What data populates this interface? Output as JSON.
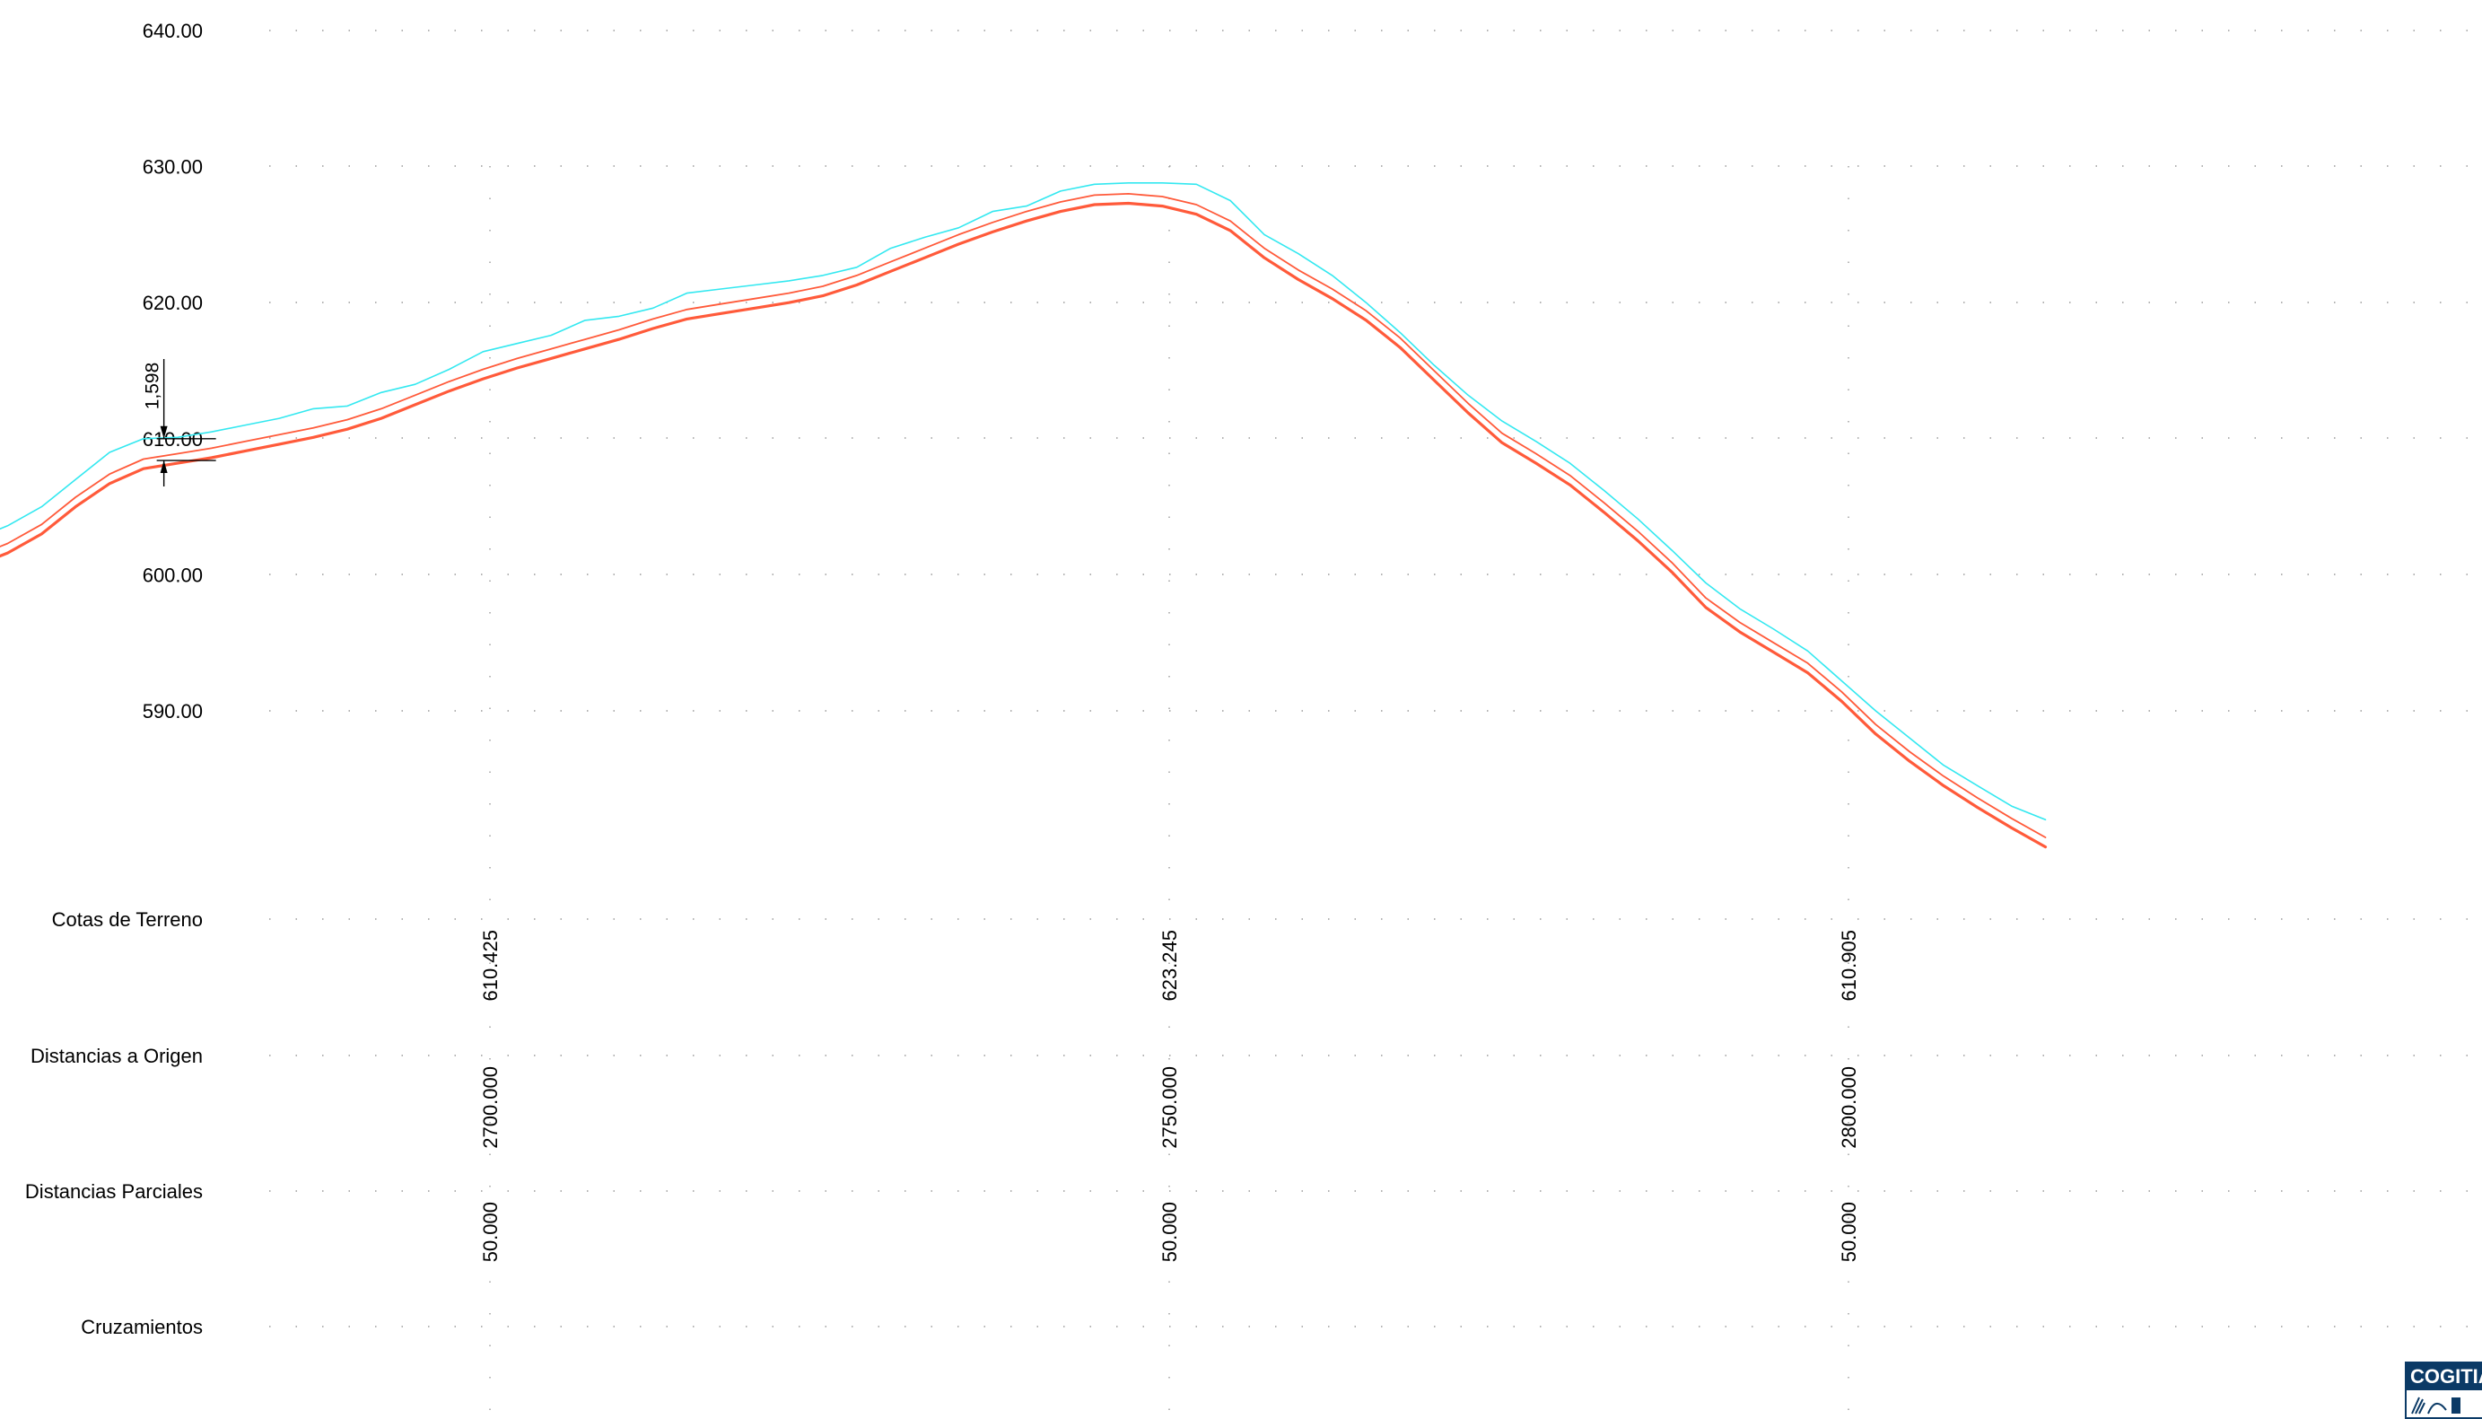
{
  "chart_data": {
    "type": "line",
    "ylim": [
      575,
      640
    ],
    "xlim": [
      2664,
      2830
    ],
    "y_ticks": [
      "640.00",
      "630.00",
      "620.00",
      "610.00",
      "600.00",
      "590.00"
    ],
    "y_tick_values": [
      640,
      630,
      620,
      610,
      600,
      590
    ],
    "row_labels": [
      "Cotas de Terreno",
      "Distancias a Origen",
      "Distancias Parciales",
      "Cruzamientos"
    ],
    "stations": [
      {
        "x": 2700,
        "cota": "610.425",
        "origen": "2700.000",
        "parcial": "50.000"
      },
      {
        "x": 2750,
        "cota": "623.245",
        "origen": "2750.000",
        "parcial": "50.000"
      },
      {
        "x": 2800,
        "cota": "610.905",
        "origen": "2800.000",
        "parcial": "50.000"
      }
    ],
    "dimension": {
      "label": "1,598",
      "x": 2676,
      "y_top": 610.0,
      "y_bottom": 608.4
    },
    "series": [
      {
        "color": "#33e8f0",
        "width": 1.6,
        "points": [
          [
            2662,
            602.6
          ],
          [
            2664.5,
            603.6
          ],
          [
            2667,
            605.0
          ],
          [
            2669.5,
            607.0
          ],
          [
            2672,
            609.0
          ],
          [
            2674.5,
            610.0
          ],
          [
            2677,
            610.1
          ],
          [
            2679.5,
            610.5
          ],
          [
            2682,
            611.0
          ],
          [
            2684.5,
            611.5
          ],
          [
            2687,
            612.2
          ],
          [
            2689.5,
            612.4
          ],
          [
            2692,
            613.4
          ],
          [
            2694.5,
            614.0
          ],
          [
            2697,
            615.1
          ],
          [
            2699.5,
            616.4
          ],
          [
            2702,
            617.0
          ],
          [
            2704.5,
            617.6
          ],
          [
            2707,
            618.7
          ],
          [
            2709.5,
            619.0
          ],
          [
            2712,
            619.6
          ],
          [
            2714.5,
            620.7
          ],
          [
            2717,
            621.0
          ],
          [
            2719.5,
            621.3
          ],
          [
            2722,
            621.6
          ],
          [
            2724.5,
            622.0
          ],
          [
            2727,
            622.6
          ],
          [
            2729.5,
            624.0
          ],
          [
            2732,
            624.8
          ],
          [
            2734.5,
            625.5
          ],
          [
            2737,
            626.7
          ],
          [
            2739.5,
            627.1
          ],
          [
            2742,
            628.2
          ],
          [
            2744.5,
            628.7
          ],
          [
            2747,
            628.8
          ],
          [
            2749.5,
            628.8
          ],
          [
            2752,
            628.7
          ],
          [
            2754.5,
            627.5
          ],
          [
            2757,
            625.0
          ],
          [
            2759.5,
            623.6
          ],
          [
            2762,
            622.0
          ],
          [
            2764.5,
            620.0
          ],
          [
            2767,
            617.8
          ],
          [
            2769.5,
            615.4
          ],
          [
            2772,
            613.2
          ],
          [
            2774.5,
            611.3
          ],
          [
            2777,
            609.8
          ],
          [
            2779.5,
            608.2
          ],
          [
            2782,
            606.2
          ],
          [
            2784.5,
            604.1
          ],
          [
            2787,
            601.8
          ],
          [
            2789.5,
            599.4
          ],
          [
            2792,
            597.5
          ],
          [
            2794.5,
            596.0
          ],
          [
            2797,
            594.4
          ],
          [
            2799.5,
            592.2
          ],
          [
            2802,
            590.0
          ],
          [
            2804.5,
            588.0
          ],
          [
            2807,
            586.0
          ],
          [
            2809.5,
            584.5
          ],
          [
            2812,
            583.0
          ],
          [
            2814.5,
            582.0
          ]
        ]
      },
      {
        "color": "#ff5a3a",
        "width": 1.8,
        "points": [
          [
            2662,
            601.3
          ],
          [
            2664.5,
            602.3
          ],
          [
            2667,
            603.7
          ],
          [
            2669.5,
            605.7
          ],
          [
            2672,
            607.4
          ],
          [
            2674.5,
            608.5
          ],
          [
            2677,
            608.9
          ],
          [
            2679.5,
            609.3
          ],
          [
            2682,
            609.8
          ],
          [
            2684.5,
            610.3
          ],
          [
            2687,
            610.8
          ],
          [
            2689.5,
            611.4
          ],
          [
            2692,
            612.2
          ],
          [
            2694.5,
            613.2
          ],
          [
            2697,
            614.2
          ],
          [
            2699.5,
            615.1
          ],
          [
            2702,
            615.9
          ],
          [
            2704.5,
            616.6
          ],
          [
            2707,
            617.3
          ],
          [
            2709.5,
            618.0
          ],
          [
            2712,
            618.8
          ],
          [
            2714.5,
            619.5
          ],
          [
            2717,
            619.9
          ],
          [
            2719.5,
            620.3
          ],
          [
            2722,
            620.7
          ],
          [
            2724.5,
            621.2
          ],
          [
            2727,
            622.0
          ],
          [
            2729.5,
            623.0
          ],
          [
            2732,
            624.0
          ],
          [
            2734.5,
            625.0
          ],
          [
            2737,
            625.9
          ],
          [
            2739.5,
            626.7
          ],
          [
            2742,
            627.4
          ],
          [
            2744.5,
            627.9
          ],
          [
            2747,
            628.0
          ],
          [
            2749.5,
            627.8
          ],
          [
            2752,
            627.2
          ],
          [
            2754.5,
            626.0
          ],
          [
            2757,
            624.0
          ],
          [
            2759.5,
            622.4
          ],
          [
            2762,
            621.0
          ],
          [
            2764.5,
            619.4
          ],
          [
            2767,
            617.4
          ],
          [
            2769.5,
            615.0
          ],
          [
            2772,
            612.6
          ],
          [
            2774.5,
            610.4
          ],
          [
            2777,
            608.9
          ],
          [
            2779.5,
            607.3
          ],
          [
            2782,
            605.3
          ],
          [
            2784.5,
            603.2
          ],
          [
            2787,
            600.9
          ],
          [
            2789.5,
            598.3
          ],
          [
            2792,
            596.5
          ],
          [
            2794.5,
            595.0
          ],
          [
            2797,
            593.5
          ],
          [
            2799.5,
            591.4
          ],
          [
            2802,
            589.0
          ],
          [
            2804.5,
            587.0
          ],
          [
            2807,
            585.2
          ],
          [
            2809.5,
            583.6
          ],
          [
            2812,
            582.1
          ],
          [
            2814.5,
            580.7
          ]
        ]
      },
      {
        "color": "#ff5a3a",
        "width": 3.2,
        "points": [
          [
            2662,
            600.6
          ],
          [
            2664.5,
            601.6
          ],
          [
            2667,
            603.0
          ],
          [
            2669.5,
            605.0
          ],
          [
            2672,
            606.7
          ],
          [
            2674.5,
            607.8
          ],
          [
            2677,
            608.2
          ],
          [
            2679.5,
            608.6
          ],
          [
            2682,
            609.1
          ],
          [
            2684.5,
            609.6
          ],
          [
            2687,
            610.1
          ],
          [
            2689.5,
            610.7
          ],
          [
            2692,
            611.5
          ],
          [
            2694.5,
            612.5
          ],
          [
            2697,
            613.5
          ],
          [
            2699.5,
            614.4
          ],
          [
            2702,
            615.2
          ],
          [
            2704.5,
            615.9
          ],
          [
            2707,
            616.6
          ],
          [
            2709.5,
            617.3
          ],
          [
            2712,
            618.1
          ],
          [
            2714.5,
            618.8
          ],
          [
            2717,
            619.2
          ],
          [
            2719.5,
            619.6
          ],
          [
            2722,
            620.0
          ],
          [
            2724.5,
            620.5
          ],
          [
            2727,
            621.3
          ],
          [
            2729.5,
            622.3
          ],
          [
            2732,
            623.3
          ],
          [
            2734.5,
            624.3
          ],
          [
            2737,
            625.2
          ],
          [
            2739.5,
            626.0
          ],
          [
            2742,
            626.7
          ],
          [
            2744.5,
            627.2
          ],
          [
            2747,
            627.3
          ],
          [
            2749.5,
            627.1
          ],
          [
            2752,
            626.5
          ],
          [
            2754.5,
            625.3
          ],
          [
            2757,
            623.3
          ],
          [
            2759.5,
            621.7
          ],
          [
            2762,
            620.3
          ],
          [
            2764.5,
            618.7
          ],
          [
            2767,
            616.7
          ],
          [
            2769.5,
            614.3
          ],
          [
            2772,
            611.9
          ],
          [
            2774.5,
            609.7
          ],
          [
            2777,
            608.2
          ],
          [
            2779.5,
            606.6
          ],
          [
            2782,
            604.6
          ],
          [
            2784.5,
            602.5
          ],
          [
            2787,
            600.2
          ],
          [
            2789.5,
            597.6
          ],
          [
            2792,
            595.8
          ],
          [
            2794.5,
            594.3
          ],
          [
            2797,
            592.8
          ],
          [
            2799.5,
            590.7
          ],
          [
            2802,
            588.3
          ],
          [
            2804.5,
            586.3
          ],
          [
            2807,
            584.5
          ],
          [
            2809.5,
            582.9
          ],
          [
            2812,
            581.4
          ],
          [
            2814.5,
            580.0
          ]
        ]
      }
    ]
  },
  "logo": {
    "text": "COGITIAB"
  }
}
